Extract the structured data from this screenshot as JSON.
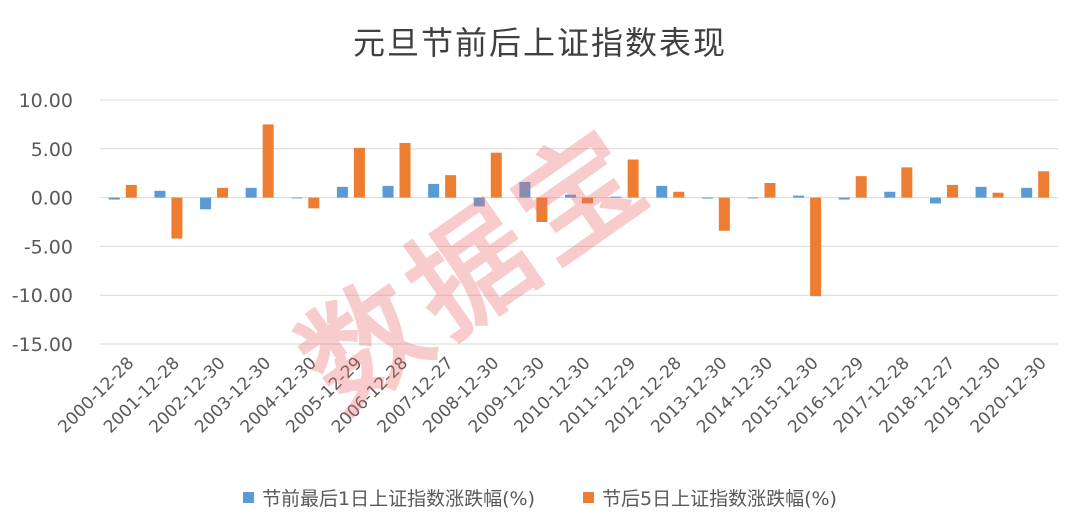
{
  "colors": {
    "series1": "#5B9BD5",
    "series2": "#ED7D31",
    "grid": "#D9D9D9",
    "watermark": "#EC6E6E"
  },
  "watermark_text": "数据宝",
  "chart_data": {
    "type": "bar",
    "title": "元旦节前后上证指数表现",
    "xlabel": "",
    "ylabel": "",
    "ylim": [
      -15,
      10
    ],
    "yticks": [
      10,
      5,
      0,
      -5,
      -10,
      -15
    ],
    "ytick_labels": [
      "10.00",
      "5.00",
      "0.00",
      "-5.00",
      "-10.00",
      "-15.00"
    ],
    "grid": true,
    "legend_position": "bottom",
    "categories": [
      "2000-12-28",
      "2001-12-28",
      "2002-12-30",
      "2003-12-30",
      "2004-12-30",
      "2005-12-29",
      "2006-12-28",
      "2007-12-27",
      "2008-12-30",
      "2009-12-30",
      "2010-12-30",
      "2011-12-29",
      "2012-12-28",
      "2013-12-30",
      "2014-12-30",
      "2015-12-30",
      "2016-12-29",
      "2017-12-28",
      "2018-12-27",
      "2019-12-30",
      "2020-12-30"
    ],
    "series": [
      {
        "name": "节前最后1日上证指数涨跌幅(%)",
        "values": [
          -0.2,
          0.7,
          -1.2,
          1.0,
          0.0,
          1.1,
          1.2,
          1.4,
          -0.9,
          1.6,
          0.3,
          0.1,
          1.2,
          -0.1,
          0.0,
          0.2,
          -0.2,
          0.6,
          -0.6,
          1.1,
          1.0
        ]
      },
      {
        "name": "节后5日上证指数涨跌幅(%)",
        "values": [
          1.3,
          -4.2,
          1.0,
          7.5,
          -1.1,
          5.1,
          5.6,
          2.3,
          4.6,
          -2.5,
          -0.6,
          3.9,
          0.6,
          -3.4,
          1.5,
          -10.1,
          2.2,
          3.1,
          1.3,
          0.5,
          2.7
        ]
      }
    ]
  }
}
